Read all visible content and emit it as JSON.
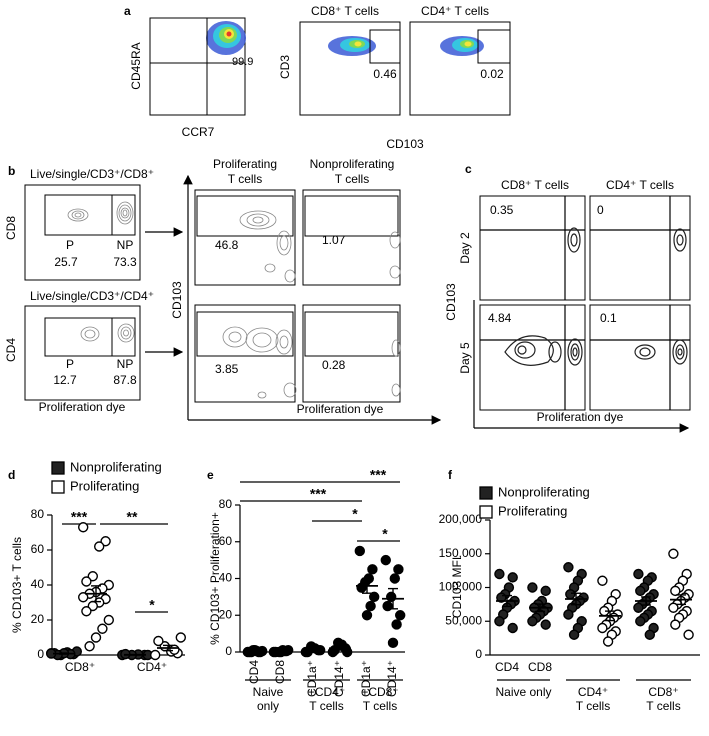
{
  "panel_a": {
    "label": "a",
    "plot_1": {
      "y_label": "CD45RA",
      "x_label": "CCR7",
      "gate": "99.9"
    },
    "plot_2": {
      "title": "CD8⁺ T cells",
      "gate": "0.46"
    },
    "plot_3": {
      "title": "CD4⁺ T cells",
      "gate": "0.02"
    },
    "y_label": "CD3",
    "x_label": "CD103"
  },
  "panel_b": {
    "label": "b",
    "gates": [
      {
        "title": "Live/single/CD3⁺/CD8⁺",
        "y_label": "CD8",
        "p": "P",
        "np": "NP",
        "p_value": "25.7",
        "np_value": "73.3"
      },
      {
        "title": "Live/single/CD3⁺/CD4⁺",
        "y_label": "CD4",
        "p": "P",
        "np": "NP",
        "p_value": "12.7",
        "np_value": "87.8"
      }
    ],
    "x_label": "Proliferation dye",
    "columns": [
      [
        "Proliferating",
        "T cells"
      ],
      [
        "Nonproliferating",
        "T cells"
      ]
    ],
    "values": [
      [
        "46.8",
        "1.07"
      ],
      [
        "3.85",
        "0.28"
      ]
    ],
    "y_label": "CD103",
    "x_label_right": "Proliferation dye"
  },
  "panel_c": {
    "label": "c",
    "columns": [
      "CD8⁺ T cells",
      "CD4⁺ T cells"
    ],
    "rows": [
      "Day 2",
      "Day 5"
    ],
    "values": [
      [
        "0.35",
        "0"
      ],
      [
        "4.84",
        "0.1"
      ]
    ],
    "y_label": "CD103",
    "x_label": "Proliferation dye"
  },
  "chart_data": [
    {
      "type": "dot",
      "label": "d",
      "y_label": "% CD103+ T cells",
      "categories": [
        "CD8⁺",
        "CD4⁺"
      ],
      "series": [
        {
          "name": "Nonproliferating",
          "color": "#222222",
          "values": [
            [
              1,
              0.5,
              1.5,
              0,
              1,
              2,
              0.5,
              1,
              0,
              0.8
            ],
            [
              0,
              0,
              0.3,
              0,
              0.5,
              0
            ]
          ],
          "means": [
            0.8,
            0.1
          ],
          "sem": [
            0.3,
            0.1
          ]
        },
        {
          "name": "Proliferating",
          "color": "#ffffff",
          "values": [
            [
              73,
              65,
              62,
              45,
              42,
              40,
              38,
              36,
              35,
              33,
              32,
              30,
              28,
              25,
              20,
              15,
              10,
              5
            ],
            [
              0,
              1,
              2,
              5,
              8,
              10,
              3
            ]
          ],
          "means": [
            35,
            4
          ],
          "sem": [
            4.5,
            1.5
          ]
        }
      ],
      "ylim": [
        0,
        80
      ],
      "yticks": [
        0,
        20,
        40,
        60,
        80
      ],
      "annotations": [
        "***",
        "**",
        "*"
      ]
    },
    {
      "type": "dot",
      "label": "e",
      "y_label": "% CD103+ Proliferation+",
      "categories": [
        "CD4",
        "CD8",
        "CD1a⁺",
        "CD14⁺",
        "CD1a⁺",
        "CD14⁺"
      ],
      "groups": [
        [
          "Naive",
          "only"
        ],
        [
          "+CD4⁺",
          "T cells"
        ],
        [
          "+CD8⁺",
          "T cells"
        ]
      ],
      "series": [
        {
          "color": "#000000",
          "values": [
            [
              0,
              0,
              0.5,
              1,
              0,
              0.5,
              0,
              1,
              0
            ],
            [
              0,
              0.5,
              1,
              0,
              0,
              1,
              0.5,
              0
            ],
            [
              0,
              1,
              2,
              3,
              0,
              1
            ],
            [
              0,
              2,
              4,
              5,
              1,
              0
            ],
            [
              55,
              45,
              40,
              38,
              35,
              30,
              25,
              20
            ],
            [
              50,
              45,
              40,
              30,
              25,
              20,
              15,
              5
            ]
          ],
          "means": [
            0.3,
            0.4,
            1.2,
            2,
            36,
            29
          ],
          "sem": [
            0.2,
            0.2,
            0.5,
            0.9,
            4,
            5.5
          ]
        }
      ],
      "ylim": [
        0,
        80
      ],
      "yticks": [
        0,
        20,
        40,
        60,
        80
      ],
      "annotations": [
        "***",
        "***",
        "*",
        "*"
      ]
    },
    {
      "type": "dot",
      "label": "f",
      "y_label": "CD103 MFI",
      "categories": [
        "CD4",
        "CD8",
        null,
        null,
        null,
        null
      ],
      "groups": [
        [
          "Naive only"
        ],
        [
          "CD4⁺",
          "T cells"
        ],
        [
          "CD8⁺",
          "T cells"
        ]
      ],
      "series": [
        {
          "name": "Nonproliferating",
          "color": "#222222",
          "values": [
            [
              120000,
              115000,
              100000,
              90000,
              85000,
              80000,
              75000,
              70000,
              60000,
              50000,
              40000
            ],
            [
              100000,
              95000,
              80000,
              75000,
              70000,
              70000,
              65000,
              60000,
              55000,
              50000,
              45000
            ],
            [
              130000,
              120000,
              110000,
              100000,
              90000,
              85000,
              80000,
              75000,
              70000,
              60000,
              50000,
              40000,
              30000
            ],
            null,
            [
              120000,
              115000,
              110000,
              100000,
              95000,
              90000,
              85000,
              80000,
              75000,
              70000,
              65000,
              60000,
              55000,
              50000,
              40000,
              30000
            ],
            null
          ],
          "means": [
            80000,
            70000,
            83000,
            null,
            80000,
            null
          ],
          "sem": [
            8000,
            5500,
            8500,
            null,
            6000,
            null
          ]
        },
        {
          "name": "Proliferating",
          "color": "#ffffff",
          "values": [
            null,
            null,
            null,
            [
              110000,
              90000,
              80000,
              70000,
              65000,
              60000,
              55000,
              50000,
              45000,
              40000,
              35000,
              30000,
              20000
            ],
            null,
            [
              150000,
              120000,
              110000,
              100000,
              95000,
              90000,
              85000,
              80000,
              75000,
              70000,
              65000,
              60000,
              55000,
              45000,
              30000
            ]
          ],
          "means": [
            null,
            null,
            null,
            58000,
            null,
            82000
          ],
          "sem": [
            null,
            null,
            null,
            7000,
            null,
            7000
          ]
        }
      ],
      "ylim": [
        0,
        200000
      ],
      "yticks": [
        0,
        {
          "value": 50000,
          "label": "50,000"
        },
        {
          "value": 100000,
          "label": "100,000"
        },
        {
          "value": 150000,
          "label": "150,000"
        },
        {
          "value": 200000,
          "label": "200,000"
        }
      ]
    }
  ]
}
